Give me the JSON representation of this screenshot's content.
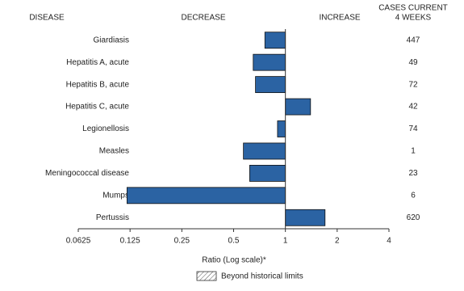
{
  "chart_data": {
    "type": "bar",
    "column_headers": {
      "disease": "DISEASE",
      "decrease": "DECREASE",
      "increase": "INCREASE",
      "cases": [
        "CASES CURRENT",
        "4 WEEKS"
      ]
    },
    "categories": [
      "Giardiasis",
      "Hepatitis A, acute",
      "Hepatitis B, acute",
      "Hepatitis C, acute",
      "Legionellosis",
      "Measles",
      "Meningococcal disease",
      "Mumps",
      "Pertussis"
    ],
    "values": [
      0.76,
      0.65,
      0.67,
      1.4,
      0.9,
      0.57,
      0.62,
      0.12,
      1.7
    ],
    "cases": [
      447,
      49,
      72,
      42,
      74,
      1,
      23,
      6,
      620
    ],
    "color": "#2b63a3",
    "xlabel": "Ratio (Log scale)*",
    "log_scale": true,
    "xlim": [
      0.0625,
      4
    ],
    "xticks": [
      0.0625,
      0.125,
      0.25,
      0.5,
      1,
      2,
      4
    ],
    "reference": 1,
    "legend": "Beyond historical limits"
  }
}
